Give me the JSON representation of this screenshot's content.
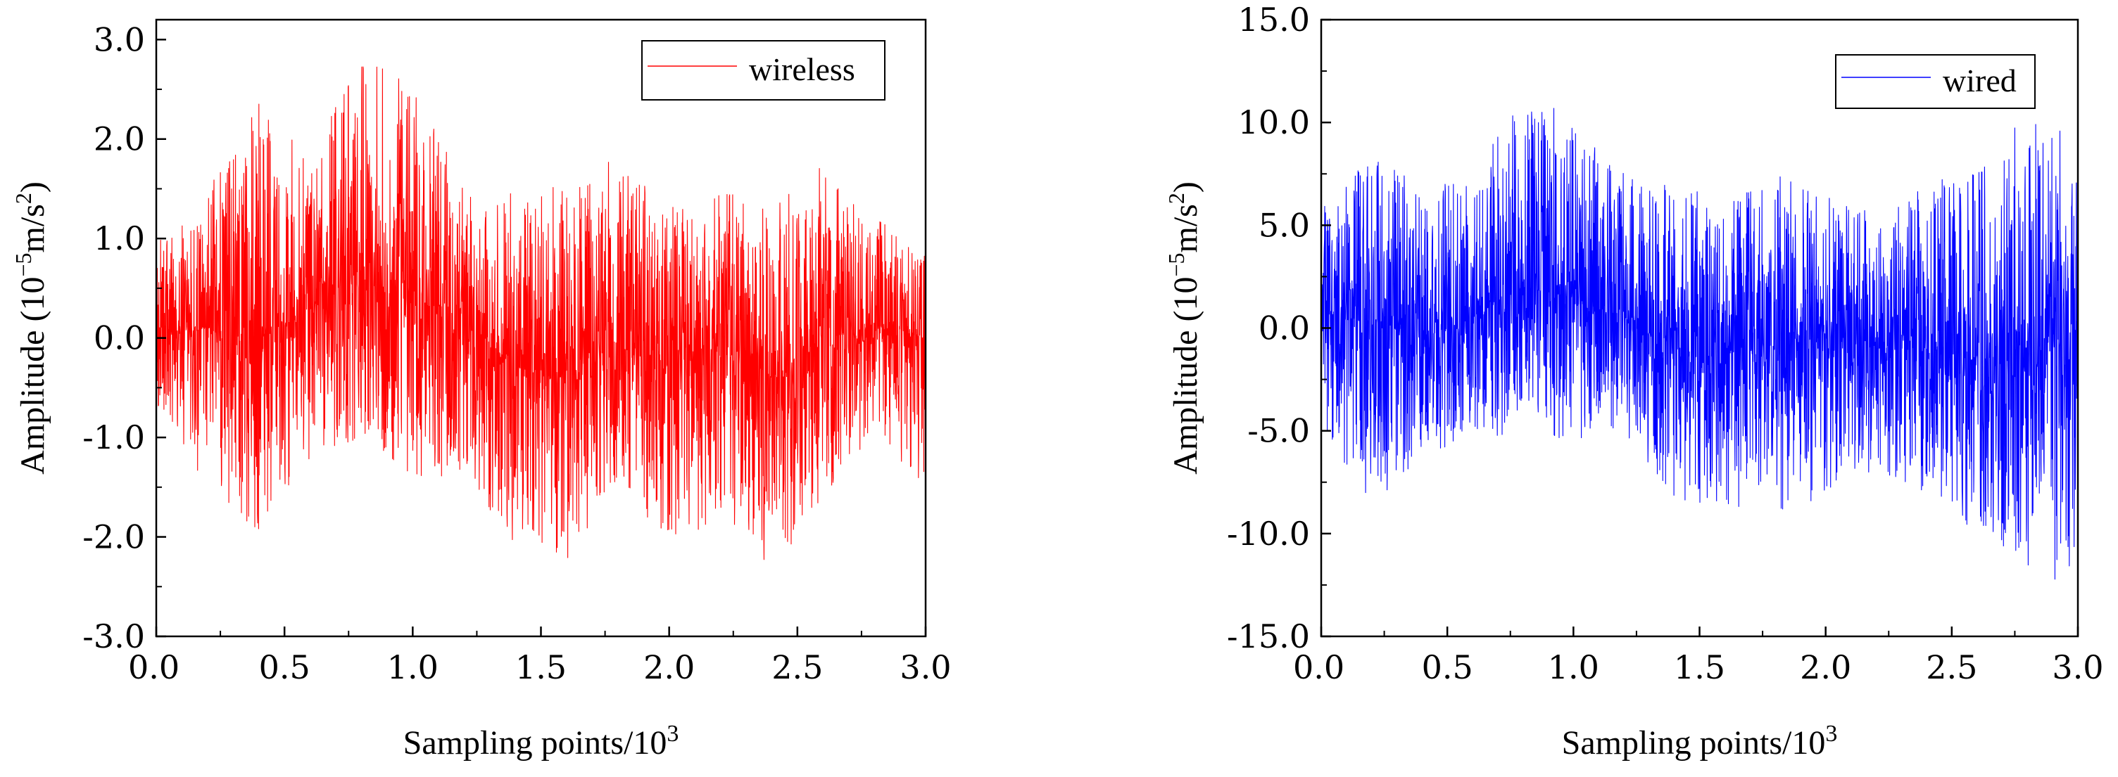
{
  "chart_data": [
    {
      "type": "line",
      "name": "wireless",
      "color": "#ff0000",
      "xlabel": "Sampling points/10",
      "xlabel_exponent": "3",
      "ylabel": "Amplitude (10",
      "ylabel_exponent1": "−5",
      "ylabel_middle": "m/s",
      "ylabel_exponent2": "2",
      "ylabel_end": ")",
      "xlim": [
        0,
        3.0
      ],
      "ylim": [
        -3.0,
        3.2
      ],
      "xticks": [
        "0.0",
        "0.5",
        "1.0",
        "1.5",
        "2.0",
        "2.5",
        "3.0"
      ],
      "xtick_values": [
        0,
        0.5,
        1.0,
        1.5,
        2.0,
        2.5,
        3.0
      ],
      "yticks": [
        "-3.0",
        "-2.0",
        "-1.0",
        "0.0",
        "1.0",
        "2.0",
        "3.0"
      ],
      "ytick_values": [
        -3,
        -2,
        -1,
        0,
        1,
        2,
        3
      ],
      "legend": {
        "label": "wireless",
        "position": "top-right"
      },
      "n_points": 3000,
      "envelope": {
        "x": [
          0,
          0.2,
          0.4,
          0.6,
          0.8,
          1.0,
          1.2,
          1.4,
          1.6,
          1.8,
          2.0,
          2.2,
          2.4,
          2.6,
          2.8,
          3.0
        ],
        "max": [
          1.0,
          1.5,
          2.4,
          1.8,
          2.85,
          2.6,
          1.5,
          1.5,
          1.6,
          1.85,
          1.3,
          1.5,
          1.3,
          1.75,
          1.2,
          1.0
        ],
        "min": [
          -0.7,
          -1.5,
          -1.95,
          -1.2,
          -1.0,
          -1.5,
          -1.4,
          -2.1,
          -2.25,
          -1.5,
          -2.1,
          -1.8,
          -2.35,
          -1.7,
          -1.0,
          -1.5
        ],
        "mean": [
          0.05,
          0.1,
          0.0,
          0.3,
          0.6,
          0.4,
          0.2,
          -0.3,
          -0.4,
          0.0,
          -0.3,
          0.0,
          -0.4,
          0.0,
          0.1,
          0.0
        ]
      }
    },
    {
      "type": "line",
      "name": "wired",
      "color": "#0000ff",
      "xlabel": "Sampling points/10",
      "xlabel_exponent": "3",
      "ylabel": "Amplitude (10",
      "ylabel_exponent1": "−5",
      "ylabel_middle": "m/s",
      "ylabel_exponent2": "2",
      "ylabel_end": ")",
      "xlim": [
        0,
        3.0
      ],
      "ylim": [
        -15.0,
        15.0
      ],
      "xticks": [
        "0.0",
        "0.5",
        "1.0",
        "1.5",
        "2.0",
        "2.5",
        "3.0"
      ],
      "xtick_values": [
        0,
        0.5,
        1.0,
        1.5,
        2.0,
        2.5,
        3.0
      ],
      "yticks": [
        "-15.0",
        "-10.0",
        "-5.0",
        "0.0",
        "5.0",
        "10.0",
        "15.0"
      ],
      "ytick_values": [
        -15,
        -10,
        -5,
        0,
        5,
        10,
        15
      ],
      "legend": {
        "label": "wired",
        "position": "top-right"
      },
      "n_points": 3000,
      "envelope": {
        "x": [
          0,
          0.2,
          0.4,
          0.6,
          0.8,
          1.0,
          1.2,
          1.4,
          1.6,
          1.8,
          2.0,
          2.2,
          2.4,
          2.6,
          2.8,
          3.0
        ],
        "max": [
          6.0,
          8.5,
          7.0,
          7.0,
          11.8,
          10.0,
          7.5,
          7.0,
          6.5,
          7.5,
          6.5,
          6.0,
          7.0,
          8.0,
          10.5,
          9.5
        ],
        "min": [
          -5.0,
          -8.5,
          -6.5,
          -5.5,
          -5.0,
          -5.5,
          -5.0,
          -8.5,
          -8.5,
          -9.5,
          -8.0,
          -7.0,
          -8.0,
          -10.0,
          -13.0,
          -12.0
        ],
        "mean": [
          0.3,
          0.5,
          -0.5,
          0.5,
          2.0,
          1.5,
          0.5,
          -1.0,
          -1.5,
          -0.5,
          -0.5,
          -1.0,
          -1.0,
          -1.5,
          -2.0,
          0.0
        ]
      }
    }
  ]
}
